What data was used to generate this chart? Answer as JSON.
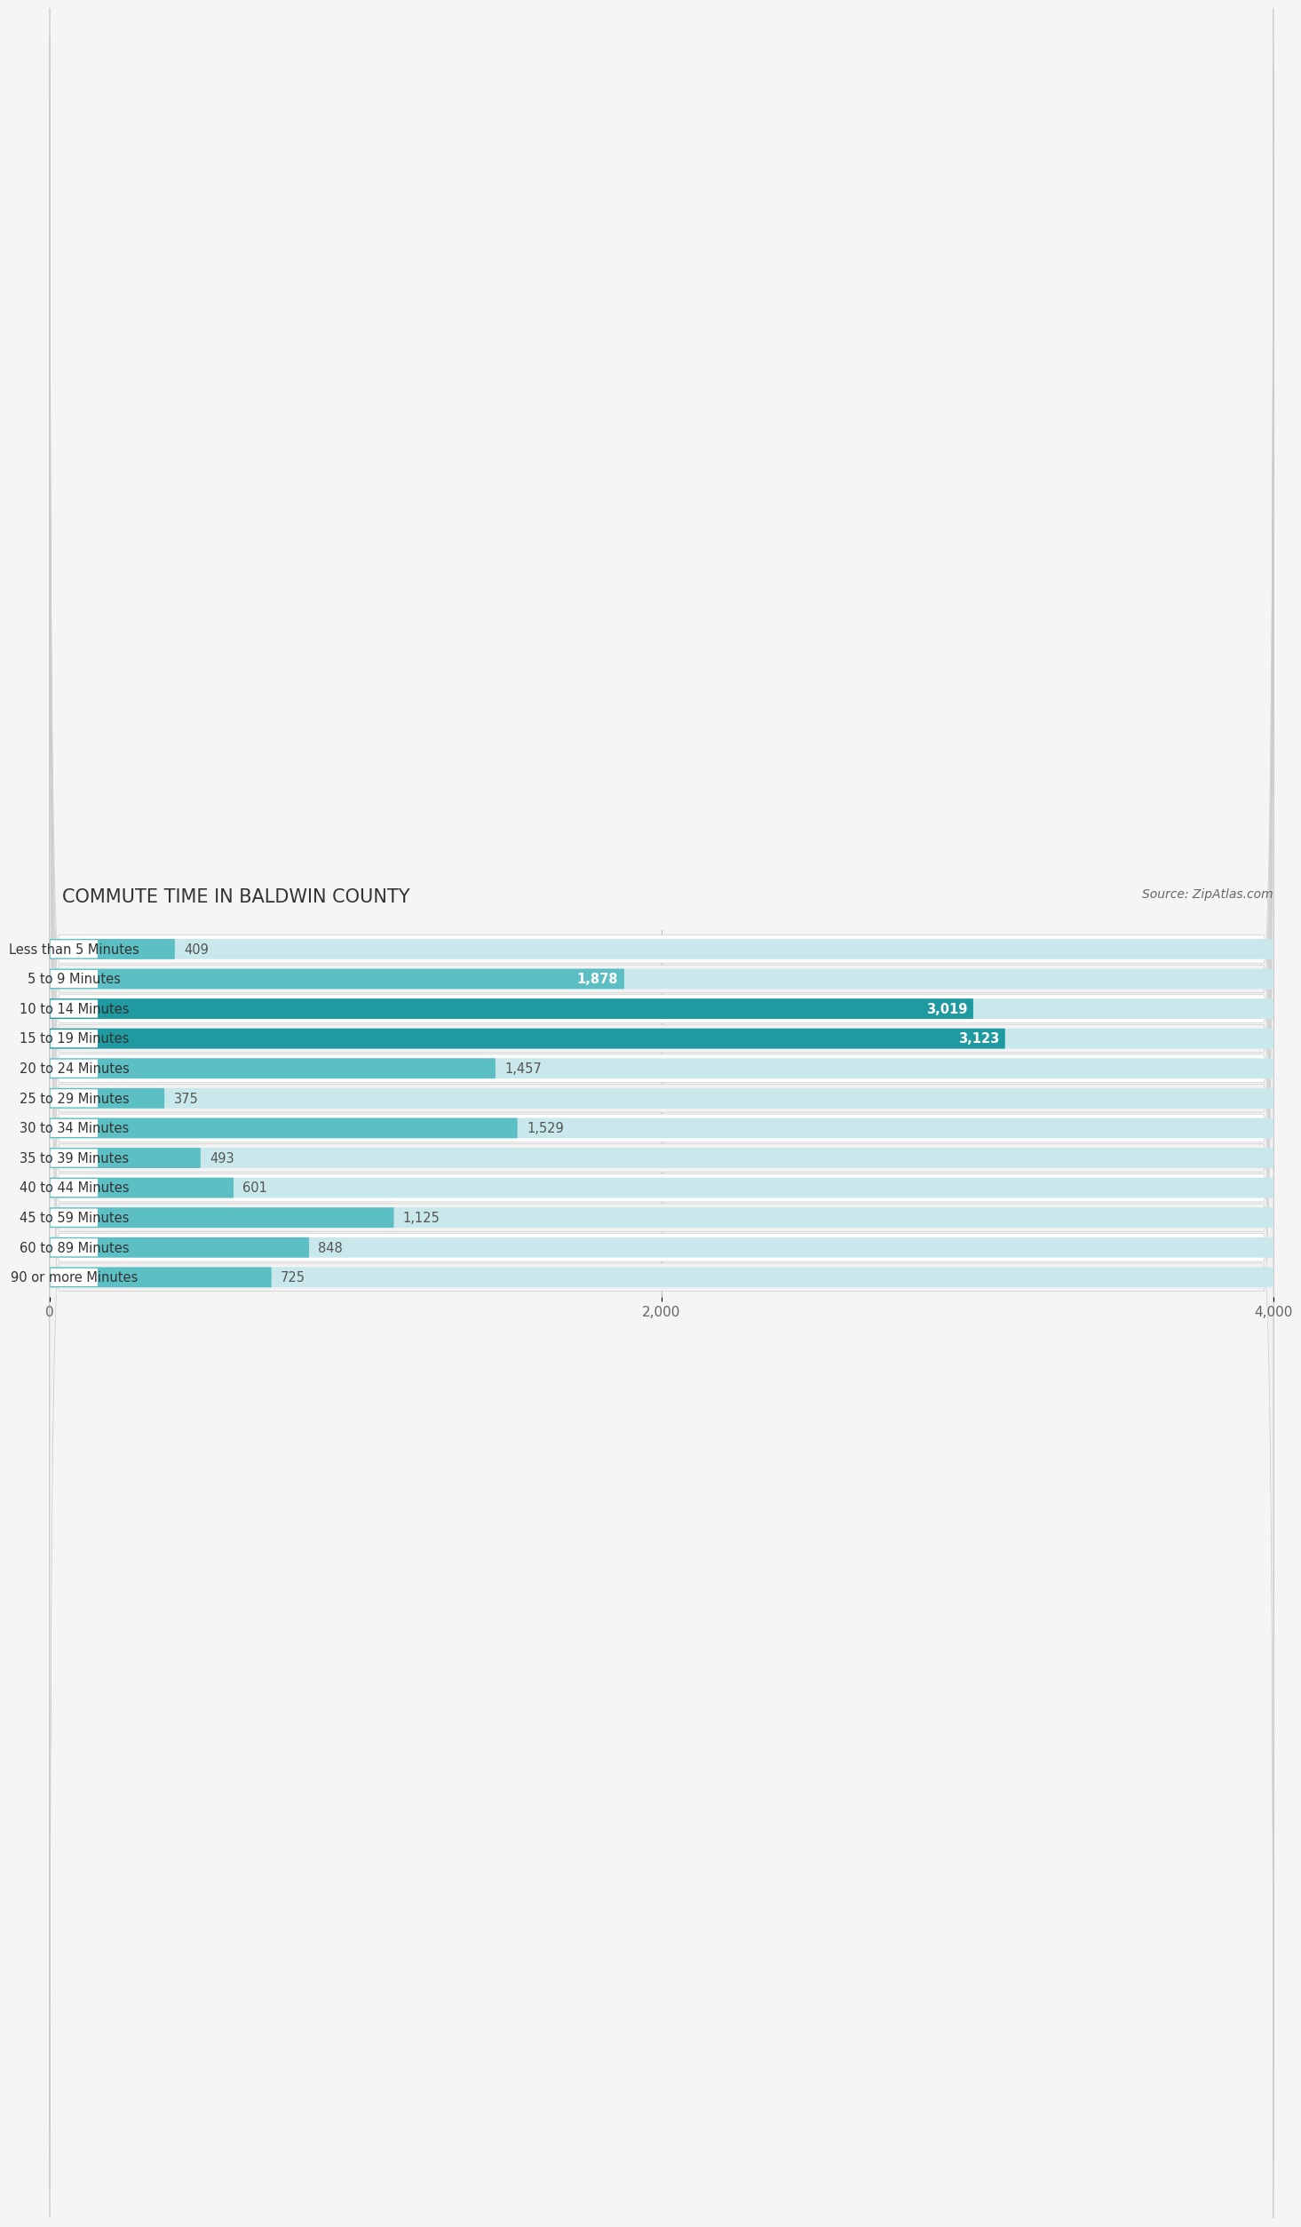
{
  "title": "COMMUTE TIME IN BALDWIN COUNTY",
  "source": "Source: ZipAtlas.com",
  "categories": [
    "Less than 5 Minutes",
    "5 to 9 Minutes",
    "10 to 14 Minutes",
    "15 to 19 Minutes",
    "20 to 24 Minutes",
    "25 to 29 Minutes",
    "30 to 34 Minutes",
    "35 to 39 Minutes",
    "40 to 44 Minutes",
    "45 to 59 Minutes",
    "60 to 89 Minutes",
    "90 or more Minutes"
  ],
  "values": [
    409,
    1878,
    3019,
    3123,
    1457,
    375,
    1529,
    493,
    601,
    1125,
    848,
    725
  ],
  "bar_color_normal": "#5bbfc4",
  "bar_color_highlight": "#1e9aa0",
  "highlight_indices": [
    2,
    3
  ],
  "label_color_inside": "#ffffff",
  "label_color_outside": "#555555",
  "inside_label_threshold": 1800,
  "xmax": 4000,
  "xticks": [
    0,
    2000,
    4000
  ],
  "xtick_labels": [
    "0",
    "2,000",
    "4,000"
  ],
  "row_bg_color": "#f2f2f2",
  "row_bg_color2": "#ffffff",
  "bar_bg_color": "#c8e8eb",
  "title_color": "#333333",
  "title_fontsize": 15,
  "label_fontsize": 10.5,
  "tick_fontsize": 11,
  "source_fontsize": 10
}
